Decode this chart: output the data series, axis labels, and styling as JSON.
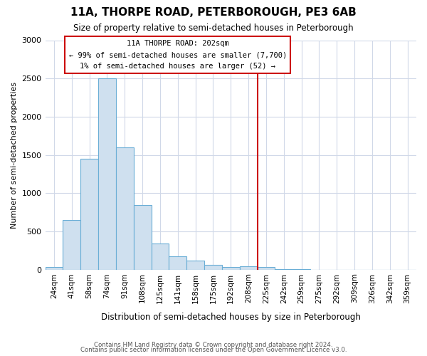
{
  "title": "11A, THORPE ROAD, PETERBOROUGH, PE3 6AB",
  "subtitle": "Size of property relative to semi-detached houses in Peterborough",
  "xlabel": "Distribution of semi-detached houses by size in Peterborough",
  "ylabel": "Number of semi-detached properties",
  "footer1": "Contains HM Land Registry data © Crown copyright and database right 2024.",
  "footer2": "Contains public sector information licensed under the Open Government Licence v3.0.",
  "bin_labels": [
    "24sqm",
    "41sqm",
    "58sqm",
    "74sqm",
    "91sqm",
    "108sqm",
    "125sqm",
    "141sqm",
    "158sqm",
    "175sqm",
    "192sqm",
    "208sqm",
    "225sqm",
    "242sqm",
    "259sqm",
    "275sqm",
    "292sqm",
    "309sqm",
    "326sqm",
    "342sqm",
    "359sqm"
  ],
  "bar_values": [
    30,
    650,
    1450,
    2500,
    1600,
    840,
    340,
    170,
    115,
    60,
    30,
    40,
    30,
    5,
    5,
    0,
    0,
    0,
    0,
    0,
    0
  ],
  "bar_color": "#cfe0ef",
  "bar_edge_color": "#6aaed6",
  "ylim": [
    0,
    3000
  ],
  "yticks": [
    0,
    500,
    1000,
    1500,
    2000,
    2500,
    3000
  ],
  "vline_x": 11.5,
  "vline_color": "#cc0000",
  "annotation_title": "11A THORPE ROAD: 202sqm",
  "annotation_line1": "← 99% of semi-detached houses are smaller (7,700)",
  "annotation_line2": "1% of semi-detached houses are larger (52) →",
  "background_color": "#ffffff",
  "grid_color": "#d0d8e8"
}
